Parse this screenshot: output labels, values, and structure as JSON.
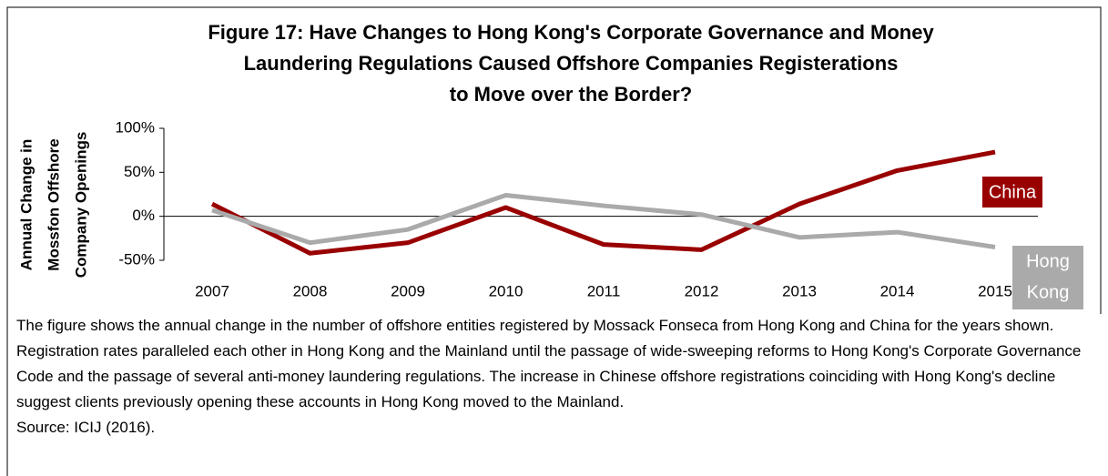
{
  "chart_data": {
    "type": "line",
    "title": [
      "Figure 17: Have Changes to Hong Kong's Corporate Governance and Money",
      "Laundering Regulations Caused Offshore Companies Registerations",
      "to Move over the Border?"
    ],
    "ylabel": [
      "Annual Change in",
      "Mossfon Offshore",
      "Company Openings"
    ],
    "categories": [
      "2007",
      "2008",
      "2009",
      "2010",
      "2011",
      "2012",
      "2013",
      "2014",
      "2015"
    ],
    "series": [
      {
        "name": "China",
        "color": "#990000",
        "values": [
          14,
          -42,
          -30,
          10,
          -32,
          -38,
          14,
          52,
          73
        ]
      },
      {
        "name": [
          "Hong",
          "Kong"
        ],
        "color": "#aaaaaa",
        "values": [
          7,
          -30,
          -15,
          24,
          12,
          2,
          -24,
          -18,
          -35
        ]
      }
    ],
    "ylim": [
      -50,
      100
    ],
    "yticks": [
      {
        "value": -50,
        "label": "-50%"
      },
      {
        "value": 0,
        "label": "0%"
      },
      {
        "value": 50,
        "label": "50%"
      },
      {
        "value": 100,
        "label": "100%"
      }
    ],
    "caption": "The figure shows the annual change in the number of offshore entities registered by Mossack Fonseca from Hong Kong and China for the years shown. Registration rates paralleled each other in Hong Kong and the Mainland until the passage of wide-sweeping reforms to Hong Kong's Corporate Governance Code and the passage of several anti-money laundering regulations. The increase in Chinese offshore registrations coinciding with Hong Kong's decline suggest clients previously opening these accounts in Hong Kong moved to the Mainland.",
    "source": "Source: ICIJ (2016)."
  }
}
